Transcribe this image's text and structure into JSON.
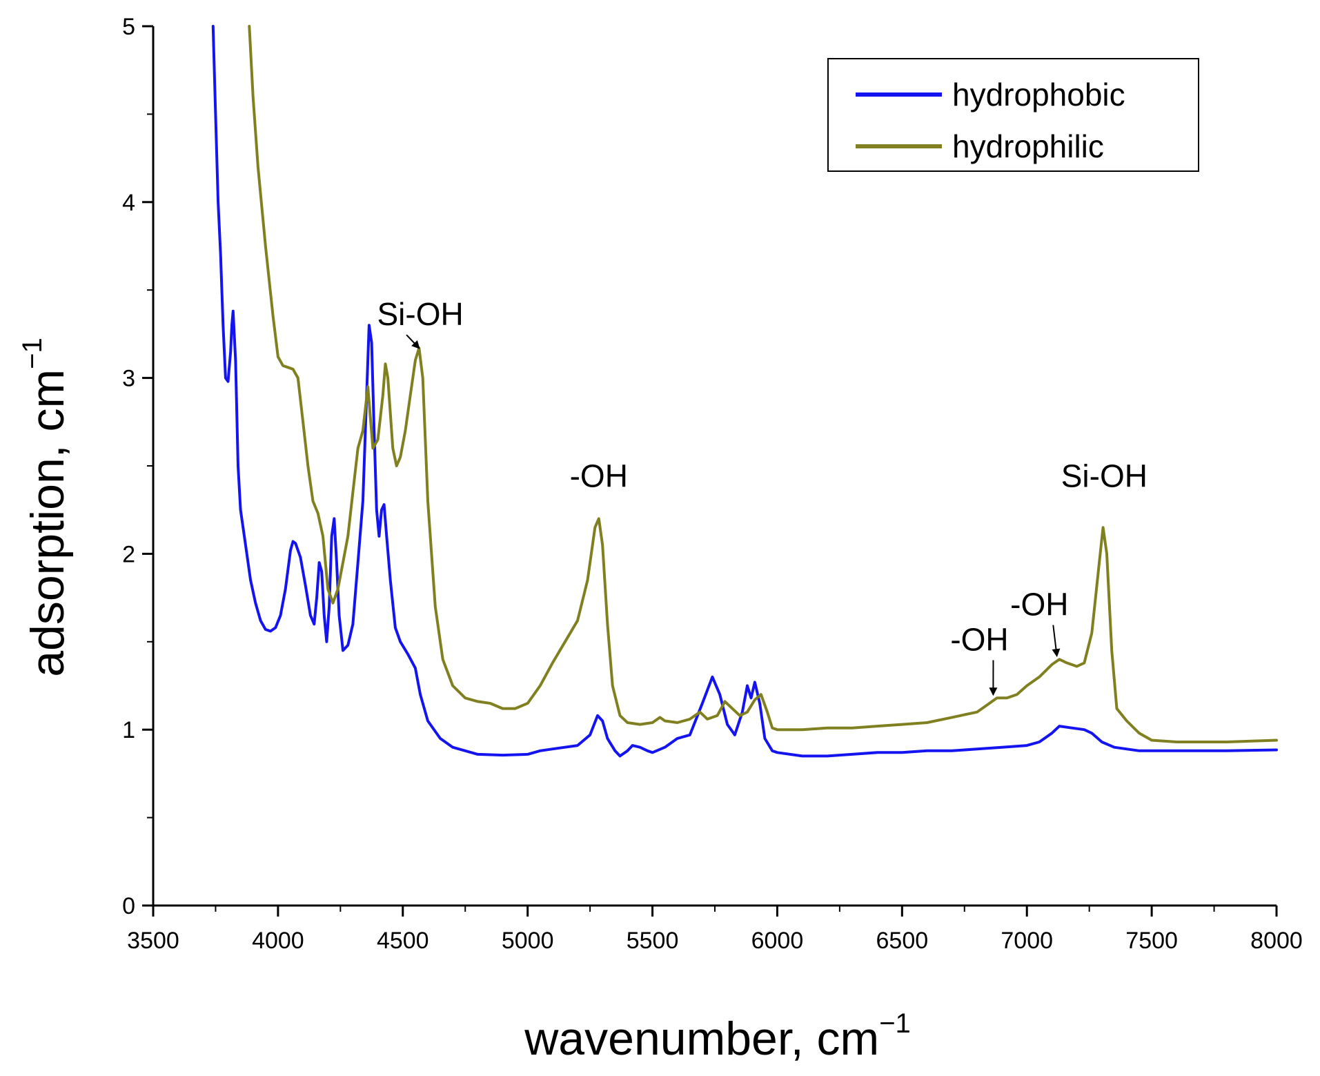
{
  "chart_data": {
    "type": "line",
    "xlabel": "wavenumber, cm",
    "xlabel_sup": "−1",
    "ylabel": "adsorption, cm",
    "ylabel_sup": "−1",
    "xlim": [
      3500,
      8000
    ],
    "ylim": [
      0,
      5
    ],
    "xticks": [
      3500,
      4000,
      4500,
      5000,
      5500,
      6000,
      6500,
      7000,
      7500,
      8000
    ],
    "yticks": [
      0,
      1,
      2,
      3,
      4,
      5
    ],
    "grid": false,
    "legend_position": "top-right",
    "series": [
      {
        "name": "hydrophobic",
        "color": "#1414f0",
        "points": [
          [
            3740,
            5.0
          ],
          [
            3750,
            4.5
          ],
          [
            3760,
            4.0
          ],
          [
            3770,
            3.7
          ],
          [
            3780,
            3.3
          ],
          [
            3790,
            3.0
          ],
          [
            3800,
            2.98
          ],
          [
            3810,
            3.15
          ],
          [
            3815,
            3.3
          ],
          [
            3820,
            3.38
          ],
          [
            3830,
            3.1
          ],
          [
            3840,
            2.5
          ],
          [
            3850,
            2.25
          ],
          [
            3870,
            2.05
          ],
          [
            3890,
            1.85
          ],
          [
            3910,
            1.72
          ],
          [
            3930,
            1.62
          ],
          [
            3950,
            1.57
          ],
          [
            3970,
            1.56
          ],
          [
            3990,
            1.58
          ],
          [
            4010,
            1.65
          ],
          [
            4030,
            1.8
          ],
          [
            4050,
            2.02
          ],
          [
            4060,
            2.07
          ],
          [
            4070,
            2.06
          ],
          [
            4090,
            1.98
          ],
          [
            4110,
            1.82
          ],
          [
            4130,
            1.65
          ],
          [
            4145,
            1.6
          ],
          [
            4155,
            1.75
          ],
          [
            4165,
            1.95
          ],
          [
            4175,
            1.9
          ],
          [
            4185,
            1.65
          ],
          [
            4195,
            1.5
          ],
          [
            4205,
            1.7
          ],
          [
            4215,
            2.1
          ],
          [
            4225,
            2.2
          ],
          [
            4235,
            1.95
          ],
          [
            4245,
            1.65
          ],
          [
            4260,
            1.45
          ],
          [
            4280,
            1.48
          ],
          [
            4300,
            1.6
          ],
          [
            4320,
            1.95
          ],
          [
            4340,
            2.3
          ],
          [
            4355,
            2.9
          ],
          [
            4365,
            3.3
          ],
          [
            4375,
            3.2
          ],
          [
            4385,
            2.7
          ],
          [
            4395,
            2.25
          ],
          [
            4405,
            2.1
          ],
          [
            4415,
            2.25
          ],
          [
            4425,
            2.28
          ],
          [
            4435,
            2.1
          ],
          [
            4450,
            1.85
          ],
          [
            4470,
            1.58
          ],
          [
            4490,
            1.5
          ],
          [
            4520,
            1.43
          ],
          [
            4550,
            1.35
          ],
          [
            4570,
            1.2
          ],
          [
            4600,
            1.05
          ],
          [
            4650,
            0.95
          ],
          [
            4700,
            0.9
          ],
          [
            4800,
            0.86
          ],
          [
            4900,
            0.855
          ],
          [
            5000,
            0.86
          ],
          [
            5050,
            0.88
          ],
          [
            5100,
            0.89
          ],
          [
            5200,
            0.91
          ],
          [
            5250,
            0.97
          ],
          [
            5280,
            1.08
          ],
          [
            5300,
            1.05
          ],
          [
            5320,
            0.95
          ],
          [
            5350,
            0.88
          ],
          [
            5370,
            0.85
          ],
          [
            5400,
            0.88
          ],
          [
            5420,
            0.91
          ],
          [
            5450,
            0.9
          ],
          [
            5480,
            0.88
          ],
          [
            5500,
            0.87
          ],
          [
            5550,
            0.9
          ],
          [
            5600,
            0.95
          ],
          [
            5650,
            0.97
          ],
          [
            5700,
            1.15
          ],
          [
            5740,
            1.3
          ],
          [
            5770,
            1.2
          ],
          [
            5800,
            1.03
          ],
          [
            5830,
            0.97
          ],
          [
            5860,
            1.1
          ],
          [
            5880,
            1.25
          ],
          [
            5895,
            1.18
          ],
          [
            5910,
            1.27
          ],
          [
            5930,
            1.15
          ],
          [
            5950,
            0.95
          ],
          [
            5980,
            0.88
          ],
          [
            6000,
            0.87
          ],
          [
            6100,
            0.85
          ],
          [
            6200,
            0.85
          ],
          [
            6300,
            0.86
          ],
          [
            6400,
            0.87
          ],
          [
            6500,
            0.87
          ],
          [
            6600,
            0.88
          ],
          [
            6700,
            0.88
          ],
          [
            6800,
            0.89
          ],
          [
            6900,
            0.9
          ],
          [
            7000,
            0.91
          ],
          [
            7050,
            0.93
          ],
          [
            7100,
            0.98
          ],
          [
            7130,
            1.02
          ],
          [
            7180,
            1.01
          ],
          [
            7230,
            1.0
          ],
          [
            7260,
            0.98
          ],
          [
            7300,
            0.93
          ],
          [
            7350,
            0.9
          ],
          [
            7450,
            0.88
          ],
          [
            7600,
            0.88
          ],
          [
            7800,
            0.88
          ],
          [
            8000,
            0.885
          ]
        ]
      },
      {
        "name": "hydrophilic",
        "color": "#808020",
        "points": [
          [
            3885,
            5.0
          ],
          [
            3900,
            4.6
          ],
          [
            3920,
            4.2
          ],
          [
            3950,
            3.75
          ],
          [
            3980,
            3.35
          ],
          [
            4000,
            3.12
          ],
          [
            4020,
            3.07
          ],
          [
            4040,
            3.06
          ],
          [
            4060,
            3.05
          ],
          [
            4080,
            3.0
          ],
          [
            4100,
            2.75
          ],
          [
            4120,
            2.5
          ],
          [
            4140,
            2.3
          ],
          [
            4160,
            2.23
          ],
          [
            4180,
            2.1
          ],
          [
            4200,
            1.8
          ],
          [
            4220,
            1.72
          ],
          [
            4240,
            1.8
          ],
          [
            4260,
            1.95
          ],
          [
            4280,
            2.1
          ],
          [
            4300,
            2.35
          ],
          [
            4320,
            2.6
          ],
          [
            4340,
            2.7
          ],
          [
            4360,
            2.95
          ],
          [
            4380,
            2.6
          ],
          [
            4400,
            2.65
          ],
          [
            4420,
            2.9
          ],
          [
            4430,
            3.08
          ],
          [
            4440,
            3.0
          ],
          [
            4460,
            2.6
          ],
          [
            4475,
            2.5
          ],
          [
            4490,
            2.55
          ],
          [
            4510,
            2.7
          ],
          [
            4530,
            2.9
          ],
          [
            4550,
            3.1
          ],
          [
            4565,
            3.17
          ],
          [
            4580,
            3.0
          ],
          [
            4600,
            2.3
          ],
          [
            4630,
            1.7
          ],
          [
            4660,
            1.4
          ],
          [
            4700,
            1.25
          ],
          [
            4750,
            1.18
          ],
          [
            4800,
            1.16
          ],
          [
            4850,
            1.15
          ],
          [
            4900,
            1.12
          ],
          [
            4950,
            1.12
          ],
          [
            5000,
            1.15
          ],
          [
            5050,
            1.25
          ],
          [
            5100,
            1.38
          ],
          [
            5150,
            1.5
          ],
          [
            5200,
            1.62
          ],
          [
            5240,
            1.85
          ],
          [
            5270,
            2.15
          ],
          [
            5285,
            2.2
          ],
          [
            5300,
            2.05
          ],
          [
            5320,
            1.6
          ],
          [
            5340,
            1.25
          ],
          [
            5370,
            1.08
          ],
          [
            5400,
            1.04
          ],
          [
            5450,
            1.03
          ],
          [
            5500,
            1.04
          ],
          [
            5530,
            1.07
          ],
          [
            5550,
            1.05
          ],
          [
            5600,
            1.04
          ],
          [
            5650,
            1.06
          ],
          [
            5690,
            1.1
          ],
          [
            5720,
            1.06
          ],
          [
            5760,
            1.08
          ],
          [
            5790,
            1.16
          ],
          [
            5820,
            1.12
          ],
          [
            5850,
            1.08
          ],
          [
            5880,
            1.1
          ],
          [
            5910,
            1.17
          ],
          [
            5935,
            1.2
          ],
          [
            5960,
            1.1
          ],
          [
            5980,
            1.01
          ],
          [
            6000,
            1.0
          ],
          [
            6100,
            1.0
          ],
          [
            6200,
            1.01
          ],
          [
            6300,
            1.01
          ],
          [
            6400,
            1.02
          ],
          [
            6500,
            1.03
          ],
          [
            6600,
            1.04
          ],
          [
            6700,
            1.07
          ],
          [
            6800,
            1.1
          ],
          [
            6850,
            1.15
          ],
          [
            6880,
            1.18
          ],
          [
            6920,
            1.18
          ],
          [
            6960,
            1.2
          ],
          [
            7000,
            1.25
          ],
          [
            7050,
            1.3
          ],
          [
            7100,
            1.37
          ],
          [
            7130,
            1.4
          ],
          [
            7160,
            1.38
          ],
          [
            7200,
            1.36
          ],
          [
            7230,
            1.38
          ],
          [
            7260,
            1.55
          ],
          [
            7290,
            1.95
          ],
          [
            7305,
            2.15
          ],
          [
            7320,
            2.0
          ],
          [
            7340,
            1.45
          ],
          [
            7360,
            1.12
          ],
          [
            7400,
            1.05
          ],
          [
            7450,
            0.98
          ],
          [
            7500,
            0.94
          ],
          [
            7600,
            0.93
          ],
          [
            7700,
            0.93
          ],
          [
            7800,
            0.93
          ],
          [
            7900,
            0.935
          ],
          [
            8000,
            0.94
          ]
        ]
      }
    ],
    "annotations": [
      {
        "text": "Si-OH",
        "x": 4570,
        "y": 3.3,
        "arrow_to": [
          4565,
          3.17
        ]
      },
      {
        "text": "-OH",
        "x": 5285,
        "y": 2.38,
        "arrow_to": null
      },
      {
        "text": "Si-OH",
        "x": 7310,
        "y": 2.38,
        "arrow_to": null
      },
      {
        "text": "-OH",
        "x": 6810,
        "y": 1.45,
        "arrow_to": [
          6865,
          1.2
        ]
      },
      {
        "text": "-OH",
        "x": 7050,
        "y": 1.65,
        "arrow_to": [
          7120,
          1.42
        ]
      }
    ]
  }
}
